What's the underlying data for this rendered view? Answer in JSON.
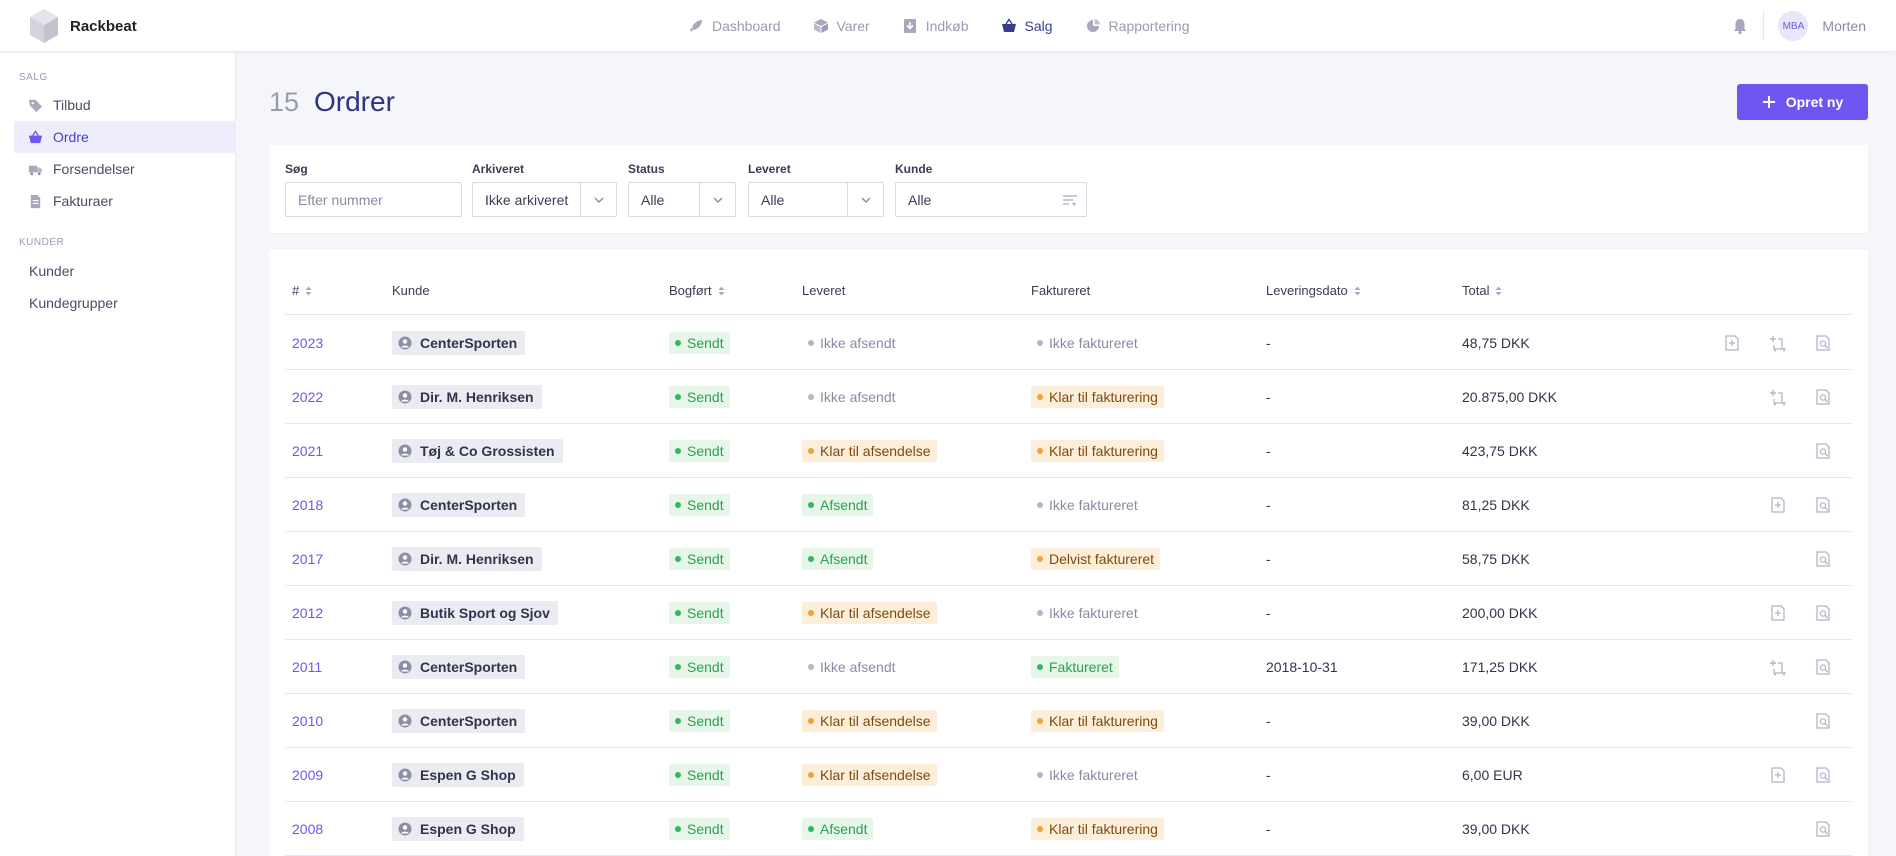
{
  "app": {
    "name": "Rackbeat"
  },
  "topnav": [
    {
      "label": "Dashboard",
      "icon": "rocket-icon",
      "active": false
    },
    {
      "label": "Varer",
      "icon": "box-icon",
      "active": false
    },
    {
      "label": "Indkøb",
      "icon": "download-icon",
      "active": false
    },
    {
      "label": "Salg",
      "icon": "basket-icon",
      "active": true
    },
    {
      "label": "Rapportering",
      "icon": "pie-chart-icon",
      "active": false
    }
  ],
  "user": {
    "initials": "MBA",
    "name": "Morten"
  },
  "sidebar": {
    "sections": [
      {
        "title": "SALG"
      },
      {
        "title": "KUNDER"
      }
    ],
    "items": [
      {
        "label": "Tilbud",
        "icon": "tag-icon"
      },
      {
        "label": "Ordre",
        "icon": "basket-icon"
      },
      {
        "label": "Forsendelser",
        "icon": "truck-icon"
      },
      {
        "label": "Fakturaer",
        "icon": "document-icon"
      },
      {
        "label": "Kunder"
      },
      {
        "label": "Kundegrupper"
      }
    ]
  },
  "page": {
    "count": "15",
    "title": "Ordrer",
    "create_label": "Opret ny"
  },
  "filters": {
    "search": {
      "label": "Søg",
      "placeholder": "Efter nummer",
      "value": ""
    },
    "archived": {
      "label": "Arkiveret",
      "value": "Ikke arkiveret"
    },
    "status": {
      "label": "Status",
      "value": "Alle"
    },
    "delivered": {
      "label": "Leveret",
      "value": "Alle"
    },
    "customer": {
      "label": "Kunde",
      "value": "Alle"
    }
  },
  "table": {
    "headers": {
      "number": "#",
      "customer": "Kunde",
      "booked": "Bogført",
      "delivered": "Leveret",
      "invoiced": "Faktureret",
      "delivery_date": "Leveringsdato",
      "total": "Total"
    },
    "rows": [
      {
        "number": "2023",
        "customer": "CenterSporten",
        "booked": "Sendt",
        "delivered": "Ikke afsendt",
        "invoiced": "Ikke faktureret",
        "delivery_date": "-",
        "total": "48,75 DKK"
      },
      {
        "number": "2022",
        "customer": "Dir. M. Henriksen",
        "booked": "Sendt",
        "delivered": "Ikke afsendt",
        "invoiced": "Klar til fakturering",
        "delivery_date": "-",
        "total": "20.875,00 DKK"
      },
      {
        "number": "2021",
        "customer": "Tøj & Co Grossisten",
        "booked": "Sendt",
        "delivered": "Klar til afsendelse",
        "invoiced": "Klar til fakturering",
        "delivery_date": "-",
        "total": "423,75 DKK"
      },
      {
        "number": "2018",
        "customer": "CenterSporten",
        "booked": "Sendt",
        "delivered": "Afsendt",
        "invoiced": "Ikke faktureret",
        "delivery_date": "-",
        "total": "81,25 DKK"
      },
      {
        "number": "2017",
        "customer": "Dir. M. Henriksen",
        "booked": "Sendt",
        "delivered": "Afsendt",
        "invoiced": "Delvist faktureret",
        "delivery_date": "-",
        "total": "58,75 DKK"
      },
      {
        "number": "2012",
        "customer": "Butik Sport og Sjov",
        "booked": "Sendt",
        "delivered": "Klar til afsendelse",
        "invoiced": "Ikke faktureret",
        "delivery_date": "-",
        "total": "200,00 DKK"
      },
      {
        "number": "2011",
        "customer": "CenterSporten",
        "booked": "Sendt",
        "delivered": "Ikke afsendt",
        "invoiced": "Faktureret",
        "delivery_date": "2018-10-31",
        "total": "171,25 DKK"
      },
      {
        "number": "2010",
        "customer": "CenterSporten",
        "booked": "Sendt",
        "delivered": "Klar til afsendelse",
        "invoiced": "Klar til fakturering",
        "delivery_date": "-",
        "total": "39,00 DKK"
      },
      {
        "number": "2009",
        "customer": "Espen G Shop",
        "booked": "Sendt",
        "delivered": "Klar til afsendelse",
        "invoiced": "Ikke faktureret",
        "delivery_date": "-",
        "total": "6,00 EUR"
      },
      {
        "number": "2008",
        "customer": "Espen G Shop",
        "booked": "Sendt",
        "delivered": "Afsendt",
        "invoiced": "Klar til fakturering",
        "delivery_date": "-",
        "total": "39,00 DKK"
      }
    ]
  },
  "colors": {
    "accent": "#6e56f0",
    "title": "#2f3380",
    "green": "#36b45e",
    "orange": "#f0a23a"
  }
}
